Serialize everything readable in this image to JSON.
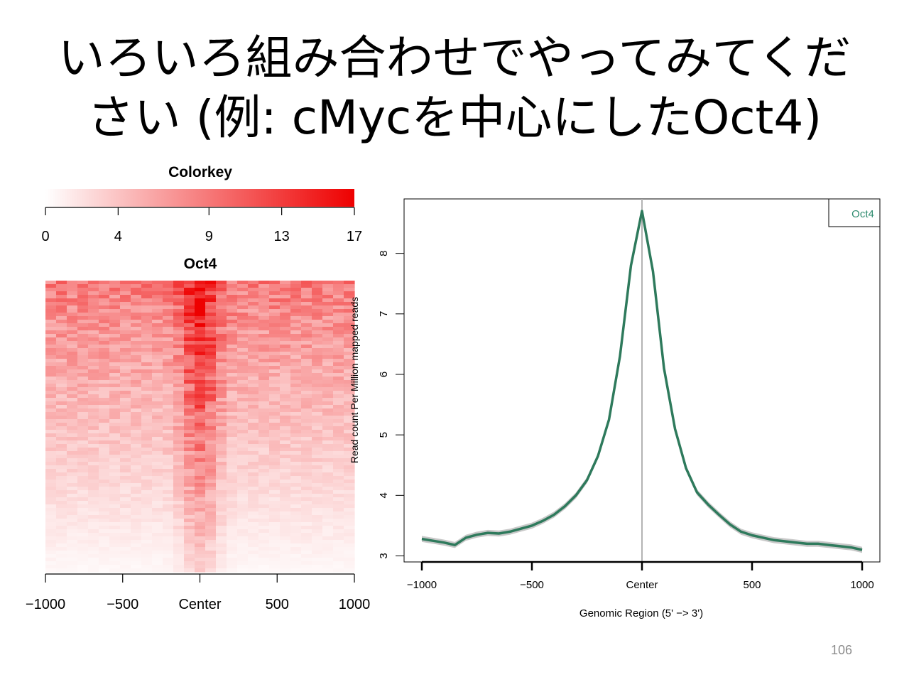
{
  "slide": {
    "title_line1": "いろいろ組み合わせでやってみてくだ",
    "title_line2": "さい (例: cMycを中心にしたOct4)",
    "page_number": "106"
  },
  "colors": {
    "heat_low": "#ffffff",
    "heat_high": "#ee0000",
    "line": "#2e7a5c",
    "band": "#c8c8c8",
    "center_line": "#b4b4b4",
    "legend_text": "#2e8b6e"
  },
  "chart_data": [
    {
      "type": "heatmap",
      "colorkey": {
        "title": "Colorkey",
        "min": 0,
        "max": 17,
        "ticks": [
          0,
          4,
          9,
          13,
          17
        ],
        "tick_labels": [
          "0",
          "4",
          "9",
          "13",
          "17"
        ]
      },
      "title": "Oct4",
      "x_ticks": [
        -1000,
        -500,
        0,
        500,
        1000
      ],
      "x_tick_labels": [
        "−1000",
        "−500",
        "Center",
        "500",
        "1000"
      ],
      "xlim": [
        -1000,
        1000
      ],
      "center_peak_value_top": 17,
      "center_peak_value_bottom": 3,
      "flank_value_top": 9,
      "flank_value_bottom": 0.5
    },
    {
      "type": "line",
      "xlabel": "Genomic Region (5' −> 3')",
      "ylabel": "Read count Per Million mapped reads",
      "xlim": [
        -1000,
        1000
      ],
      "ylim": [
        2.9,
        8.9
      ],
      "x_ticks": [
        -1000,
        -500,
        0,
        500,
        1000
      ],
      "x_tick_labels": [
        "−1000",
        "−500",
        "Center",
        "500",
        "1000"
      ],
      "y_ticks": [
        3,
        4,
        5,
        6,
        7,
        8
      ],
      "y_tick_labels": [
        "3",
        "4",
        "5",
        "6",
        "7",
        "8"
      ],
      "legend": {
        "position": "top-right",
        "entries": [
          "Oct4"
        ]
      },
      "center_line": true,
      "series": [
        {
          "name": "Oct4",
          "x": [
            -1000,
            -950,
            -900,
            -850,
            -800,
            -750,
            -700,
            -650,
            -600,
            -550,
            -500,
            -450,
            -400,
            -350,
            -300,
            -250,
            -200,
            -150,
            -100,
            -50,
            0,
            50,
            100,
            150,
            200,
            250,
            300,
            350,
            400,
            450,
            500,
            550,
            600,
            650,
            700,
            750,
            800,
            850,
            900,
            950,
            1000
          ],
          "values": [
            3.28,
            3.25,
            3.22,
            3.18,
            3.3,
            3.35,
            3.38,
            3.37,
            3.4,
            3.45,
            3.5,
            3.58,
            3.68,
            3.82,
            4.0,
            4.25,
            4.65,
            5.25,
            6.3,
            7.8,
            8.7,
            7.7,
            6.1,
            5.1,
            4.45,
            4.05,
            3.85,
            3.68,
            3.52,
            3.4,
            3.34,
            3.3,
            3.26,
            3.24,
            3.22,
            3.2,
            3.2,
            3.18,
            3.16,
            3.14,
            3.1
          ]
        }
      ]
    }
  ]
}
